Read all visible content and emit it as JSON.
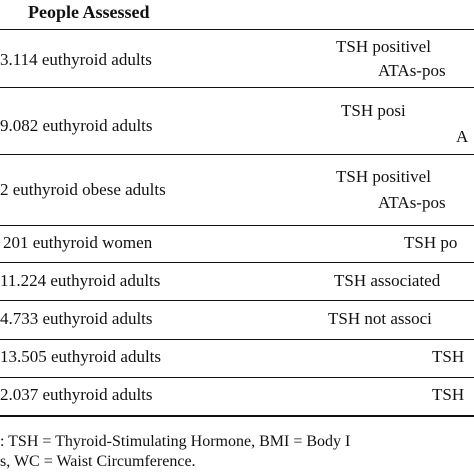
{
  "table": {
    "header": {
      "people_assessed": "People Assessed"
    },
    "rows": [
      {
        "people": "3.114 euthyroid adults",
        "finding_line1": "TSH positivel",
        "finding_line2": "ATAs-pos"
      },
      {
        "people": "9.082 euthyroid adults",
        "finding_line1": "TSH posi",
        "finding_line2": "A"
      },
      {
        "people": "2 euthyroid obese adults",
        "finding_line1": "TSH positivel",
        "finding_line2": "ATAs-pos"
      },
      {
        "people": "201 euthyroid women",
        "finding_line1": "TSH po"
      },
      {
        "people": "11.224 euthyroid adults",
        "finding_line1": "TSH associated"
      },
      {
        "people": "4.733 euthyroid adults",
        "finding_line1": "TSH not associ"
      },
      {
        "people": "13.505 euthyroid adults",
        "finding_line1": "TSH"
      },
      {
        "people": "2.037 euthyroid adults",
        "finding_line1": "TSH"
      }
    ]
  },
  "footnote": {
    "line1": ": TSH = Thyroid-Stimulating Hormone, BMI = Body I",
    "line2": "s, WC = Waist Circumference."
  }
}
